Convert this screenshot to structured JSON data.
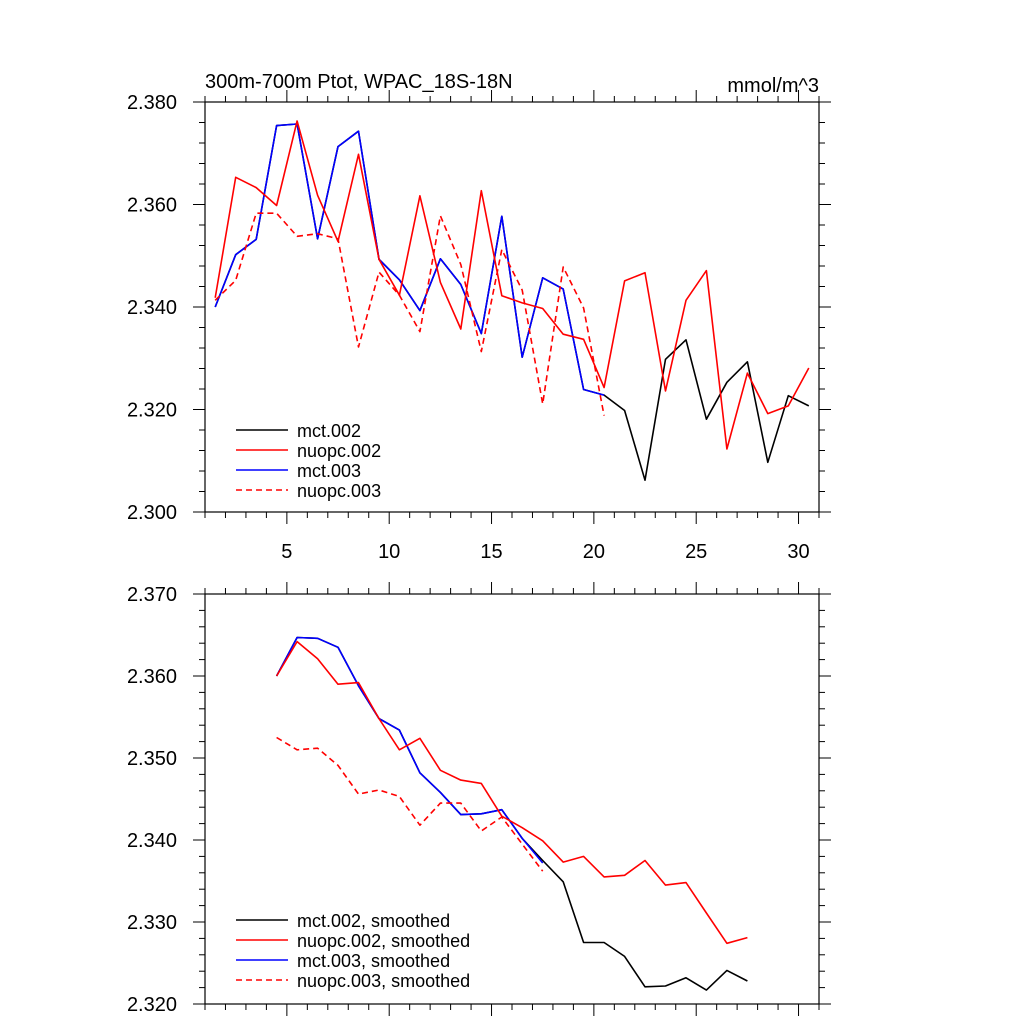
{
  "chart_data": [
    {
      "type": "line",
      "title": "300m-700m Ptot, WPAC_18S-18N",
      "units": "mmol/m^3",
      "xlabel": "",
      "ylabel": "",
      "xlim": [
        1,
        31
      ],
      "ylim": [
        2.3,
        2.38
      ],
      "xticks": [
        5,
        10,
        15,
        20,
        25,
        30
      ],
      "xticks_labeled": true,
      "yticks": [
        2.3,
        2.32,
        2.34,
        2.36,
        2.38
      ],
      "ytick_labels": [
        "2.300",
        "2.320",
        "2.340",
        "2.360",
        "2.380"
      ],
      "legend_location": "bottom-left",
      "series": [
        {
          "name": "mct.002",
          "color": "#000000",
          "dash": false,
          "draw_order": 1,
          "x": [
            1.5,
            2.5,
            3.5,
            4.5,
            5.5,
            6.5,
            7.5,
            8.5,
            9.5,
            10.5,
            11.5,
            12.5,
            13.5,
            14.5,
            15.5,
            16.5,
            17.5,
            18.5,
            19.5,
            20.5,
            21.5,
            22.5,
            23.5,
            24.5,
            25.5,
            26.5,
            27.5,
            28.5,
            29.5,
            30.5
          ],
          "values": [
            2.34,
            2.3502,
            2.3532,
            2.3754,
            2.3757,
            2.3533,
            2.3713,
            2.3743,
            2.3493,
            2.3453,
            2.3393,
            2.3494,
            2.3444,
            2.3348,
            2.3577,
            2.3302,
            2.3457,
            2.3435,
            2.3239,
            2.3228,
            2.3198,
            2.3062,
            2.3298,
            2.3336,
            2.3181,
            2.3253,
            2.3293,
            2.3097,
            2.3227,
            2.3207
          ]
        },
        {
          "name": "nuopc.002",
          "color": "#ff0000",
          "dash": false,
          "draw_order": 3,
          "x": [
            1.5,
            2.5,
            3.5,
            4.5,
            5.5,
            6.5,
            7.5,
            8.5,
            9.5,
            10.5,
            11.5,
            12.5,
            13.5,
            14.5,
            15.5,
            16.5,
            17.5,
            18.5,
            19.5,
            20.5,
            21.5,
            22.5,
            23.5,
            24.5,
            25.5,
            26.5,
            27.5,
            28.5,
            29.5,
            30.5
          ],
          "values": [
            2.3418,
            2.3653,
            2.3633,
            2.3598,
            2.3763,
            2.3618,
            2.3528,
            2.3698,
            2.3493,
            2.3423,
            2.3617,
            2.3448,
            2.3357,
            2.3627,
            2.3422,
            2.3408,
            2.3397,
            2.3347,
            2.3337,
            2.3243,
            2.3451,
            2.3467,
            2.3236,
            2.3413,
            2.3471,
            2.3123,
            2.3271,
            2.3192,
            2.3207,
            2.3281
          ]
        },
        {
          "name": "mct.003",
          "color": "#0000ff",
          "dash": false,
          "draw_order": 2,
          "x": [
            1.5,
            2.5,
            3.5,
            4.5,
            5.5,
            6.5,
            7.5,
            8.5,
            9.5,
            10.5,
            11.5,
            12.5,
            13.5,
            14.5,
            15.5,
            16.5,
            17.5,
            18.5,
            19.5,
            20.5
          ],
          "values": [
            2.34,
            2.3502,
            2.3532,
            2.3754,
            2.3757,
            2.3533,
            2.3713,
            2.3743,
            2.3493,
            2.3453,
            2.3393,
            2.3494,
            2.3444,
            2.3348,
            2.3577,
            2.3302,
            2.3457,
            2.3435,
            2.3239,
            2.3228
          ]
        },
        {
          "name": "nuopc.003",
          "color": "#ff0000",
          "dash": true,
          "draw_order": 4,
          "x": [
            1.5,
            2.5,
            3.5,
            4.5,
            5.5,
            6.5,
            7.5,
            8.5,
            9.5,
            10.5,
            11.5,
            12.5,
            13.5,
            14.5,
            15.5,
            16.5,
            17.5,
            18.5,
            19.5,
            20.5
          ],
          "values": [
            2.3413,
            2.3452,
            2.3583,
            2.3583,
            2.3538,
            2.3543,
            2.3533,
            2.3322,
            2.3468,
            2.3423,
            2.3352,
            2.3578,
            2.3483,
            2.3313,
            2.3512,
            2.3433,
            2.3211,
            2.3478,
            2.3398,
            2.3188
          ]
        }
      ]
    },
    {
      "type": "line",
      "title": "",
      "xlabel": "",
      "ylabel": "",
      "xlim": [
        1,
        31
      ],
      "ylim": [
        2.32,
        2.37
      ],
      "xticks": [
        5,
        10,
        15,
        20,
        25,
        30
      ],
      "xticks_labeled": false,
      "yticks": [
        2.32,
        2.33,
        2.34,
        2.35,
        2.36,
        2.37
      ],
      "ytick_labels": [
        "2.320",
        "2.330",
        "2.340",
        "2.350",
        "2.360",
        "2.370"
      ],
      "legend_location": "bottom-left",
      "series": [
        {
          "name": "mct.002, smoothed",
          "color": "#000000",
          "dash": false,
          "draw_order": 1,
          "x": [
            4.5,
            5.5,
            6.5,
            7.5,
            8.5,
            9.5,
            10.5,
            11.5,
            12.5,
            13.5,
            14.5,
            15.5,
            16.5,
            17.5,
            18.5,
            19.5,
            20.5,
            21.5,
            22.5,
            23.5,
            24.5,
            25.5,
            26.5,
            27.5
          ],
          "values": [
            2.36,
            2.3647,
            2.3646,
            2.3635,
            2.3588,
            2.3548,
            2.3534,
            2.3482,
            2.3458,
            2.3431,
            2.3432,
            2.3437,
            2.3402,
            2.3375,
            2.3349,
            2.3275,
            2.3275,
            2.3258,
            2.3221,
            2.3222,
            2.3232,
            2.3217,
            2.3241,
            2.3228
          ]
        },
        {
          "name": "nuopc.002, smoothed",
          "color": "#ff0000",
          "dash": false,
          "draw_order": 3,
          "x": [
            4.5,
            5.5,
            6.5,
            7.5,
            8.5,
            9.5,
            10.5,
            11.5,
            12.5,
            13.5,
            14.5,
            15.5,
            16.5,
            17.5,
            18.5,
            19.5,
            20.5,
            21.5,
            22.5,
            23.5,
            24.5,
            25.5,
            26.5,
            27.5
          ],
          "values": [
            2.36,
            2.3642,
            2.3621,
            2.359,
            2.3592,
            2.3548,
            2.351,
            2.3524,
            2.3485,
            2.3473,
            2.3469,
            2.3429,
            2.3415,
            2.3399,
            2.3373,
            2.338,
            2.3355,
            2.3357,
            2.3375,
            2.3345,
            2.3348,
            2.3311,
            2.3274,
            2.3281
          ]
        },
        {
          "name": "mct.003, smoothed",
          "color": "#0000ff",
          "dash": false,
          "draw_order": 2,
          "x": [
            4.5,
            5.5,
            6.5,
            7.5,
            8.5,
            9.5,
            10.5,
            11.5,
            12.5,
            13.5,
            14.5,
            15.5,
            16.5,
            17.5
          ],
          "values": [
            2.36,
            2.3647,
            2.3646,
            2.3635,
            2.3588,
            2.3548,
            2.3534,
            2.3482,
            2.3458,
            2.3431,
            2.3432,
            2.3437,
            2.3402,
            2.3372
          ]
        },
        {
          "name": "nuopc.003, smoothed",
          "color": "#ff0000",
          "dash": true,
          "draw_order": 4,
          "x": [
            4.5,
            5.5,
            6.5,
            7.5,
            8.5,
            9.5,
            10.5,
            11.5,
            12.5,
            13.5,
            14.5,
            15.5,
            16.5,
            17.5
          ],
          "values": [
            2.3525,
            2.351,
            2.3512,
            2.3491,
            2.3456,
            2.3461,
            2.3453,
            2.3418,
            2.3445,
            2.3445,
            2.3411,
            2.3428,
            2.3395,
            2.3362
          ]
        }
      ]
    }
  ]
}
